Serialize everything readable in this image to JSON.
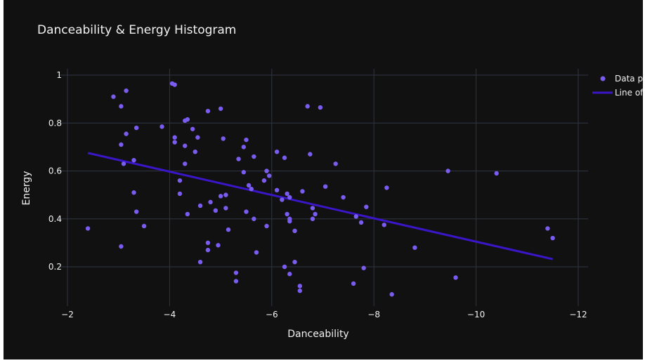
{
  "chart_data": {
    "type": "scatter",
    "title": "Danceability & Energy Histogram",
    "xlabel": "Danceability",
    "ylabel": "Energy",
    "xlim": [
      -1.9,
      -12.0
    ],
    "ylim": [
      0.05,
      1.03
    ],
    "x_reversed": true,
    "grid": true,
    "legend_position": "top-right",
    "xticks": [
      -2,
      -4,
      -6,
      -8,
      -10,
      -12
    ],
    "xtick_labels": [
      "−2",
      "−4",
      "−6",
      "−8",
      "−10",
      "−12"
    ],
    "yticks": [
      0.2,
      0.4,
      0.6,
      0.8,
      1.0
    ],
    "ytick_labels": [
      "0.2",
      "0.4",
      "0.6",
      "0.8",
      "1"
    ],
    "series": [
      {
        "name": "Data points",
        "legend_label": "Data po",
        "kind": "scatter",
        "color": "#7b5cf0",
        "points": [
          [
            -2.4,
            0.36
          ],
          [
            -2.9,
            0.91
          ],
          [
            -3.05,
            0.87
          ],
          [
            -3.15,
            0.935
          ],
          [
            -3.1,
            0.63
          ],
          [
            -3.05,
            0.71
          ],
          [
            -3.15,
            0.755
          ],
          [
            -3.35,
            0.78
          ],
          [
            -3.3,
            0.645
          ],
          [
            -3.3,
            0.51
          ],
          [
            -3.35,
            0.43
          ],
          [
            -3.5,
            0.37
          ],
          [
            -3.05,
            0.285
          ],
          [
            -4.05,
            0.965
          ],
          [
            -4.1,
            0.96
          ],
          [
            -3.85,
            0.785
          ],
          [
            -4.1,
            0.74
          ],
          [
            -4.1,
            0.72
          ],
          [
            -4.3,
            0.81
          ],
          [
            -4.35,
            0.815
          ],
          [
            -4.45,
            0.775
          ],
          [
            -4.55,
            0.74
          ],
          [
            -4.3,
            0.705
          ],
          [
            -4.5,
            0.68
          ],
          [
            -4.3,
            0.63
          ],
          [
            -4.2,
            0.56
          ],
          [
            -4.2,
            0.505
          ],
          [
            -4.35,
            0.42
          ],
          [
            -4.6,
            0.455
          ],
          [
            -4.8,
            0.47
          ],
          [
            -4.75,
            0.3
          ],
          [
            -4.95,
            0.29
          ],
          [
            -4.75,
            0.27
          ],
          [
            -4.6,
            0.22
          ],
          [
            -4.75,
            0.85
          ],
          [
            -5.0,
            0.86
          ],
          [
            -5.05,
            0.735
          ],
          [
            -5.0,
            0.495
          ],
          [
            -5.1,
            0.5
          ],
          [
            -5.1,
            0.445
          ],
          [
            -4.9,
            0.435
          ],
          [
            -5.15,
            0.355
          ],
          [
            -5.3,
            0.175
          ],
          [
            -5.3,
            0.14
          ],
          [
            -5.35,
            0.65
          ],
          [
            -5.45,
            0.7
          ],
          [
            -5.5,
            0.73
          ],
          [
            -5.45,
            0.595
          ],
          [
            -5.5,
            0.43
          ],
          [
            -5.6,
            0.525
          ],
          [
            -5.55,
            0.54
          ],
          [
            -5.65,
            0.4
          ],
          [
            -5.7,
            0.26
          ],
          [
            -5.85,
            0.56
          ],
          [
            -5.9,
            0.6
          ],
          [
            -5.95,
            0.58
          ],
          [
            -5.9,
            0.37
          ],
          [
            -5.65,
            0.66
          ],
          [
            -6.1,
            0.68
          ],
          [
            -6.25,
            0.655
          ],
          [
            -6.1,
            0.52
          ],
          [
            -6.2,
            0.48
          ],
          [
            -6.3,
            0.505
          ],
          [
            -6.35,
            0.49
          ],
          [
            -6.3,
            0.42
          ],
          [
            -6.35,
            0.4
          ],
          [
            -6.45,
            0.35
          ],
          [
            -6.35,
            0.39
          ],
          [
            -6.25,
            0.2
          ],
          [
            -6.35,
            0.17
          ],
          [
            -6.45,
            0.22
          ],
          [
            -6.55,
            0.12
          ],
          [
            -6.55,
            0.1
          ],
          [
            -6.6,
            0.515
          ],
          [
            -6.7,
            0.87
          ],
          [
            -6.95,
            0.865
          ],
          [
            -6.75,
            0.67
          ],
          [
            -7.05,
            0.535
          ],
          [
            -6.8,
            0.445
          ],
          [
            -6.85,
            0.42
          ],
          [
            -6.8,
            0.4
          ],
          [
            -7.25,
            0.63
          ],
          [
            -7.4,
            0.49
          ],
          [
            -7.65,
            0.41
          ],
          [
            -7.75,
            0.385
          ],
          [
            -7.85,
            0.45
          ],
          [
            -7.8,
            0.195
          ],
          [
            -7.6,
            0.13
          ],
          [
            -8.35,
            0.085
          ],
          [
            -8.2,
            0.375
          ],
          [
            -8.25,
            0.53
          ],
          [
            -8.8,
            0.28
          ],
          [
            -9.45,
            0.6
          ],
          [
            -9.6,
            0.155
          ],
          [
            -10.4,
            0.59
          ],
          [
            -11.4,
            0.36
          ],
          [
            -11.5,
            0.32
          ]
        ]
      },
      {
        "name": "Line of best fit",
        "legend_label": "Line of",
        "kind": "line",
        "color": "#3a16c8",
        "x": [
          -2.4,
          -11.5
        ],
        "y": [
          0.675,
          0.232
        ]
      }
    ]
  }
}
